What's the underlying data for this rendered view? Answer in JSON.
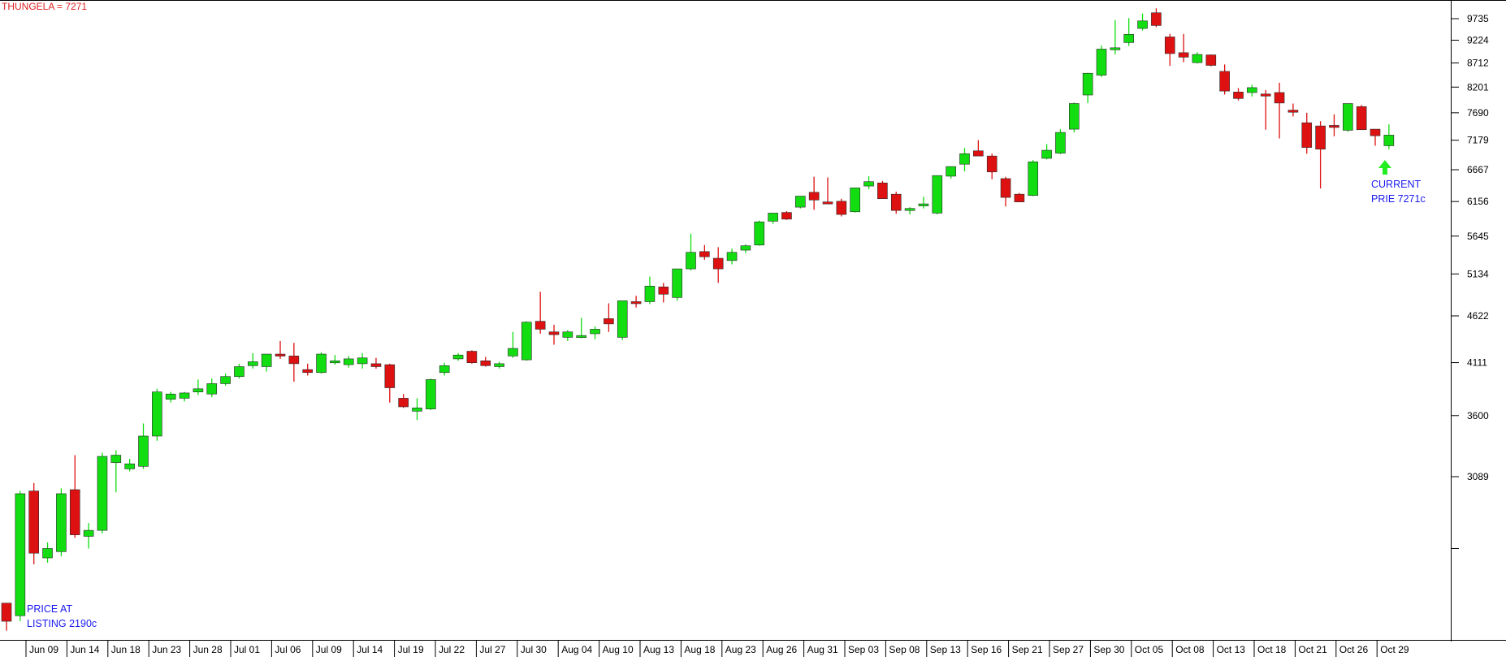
{
  "title": "THUNGELA = 7271",
  "annotations": {
    "listing": [
      "PRICE AT",
      "LISTING 2190c"
    ],
    "current": [
      "CURRENT",
      "PRIE 7271c"
    ]
  },
  "colors": {
    "up": "#11dd11",
    "down": "#dd1111",
    "title": "#dd2222",
    "annotation": "#1a1aee",
    "arrow": "#22ee22",
    "axis": "#000000"
  },
  "chart_data": {
    "type": "candlestick",
    "title": "THUNGELA = 7271",
    "y_scale": "log",
    "ylim": [
      2100,
      10100
    ],
    "y_ticks": [
      3089,
      3600,
      4111,
      4622,
      5134,
      5645,
      6156,
      6667,
      7179,
      7690,
      8201,
      8712,
      9224,
      9735
    ],
    "extra_unlabeled_tick": 2580,
    "x_tick_labels": [
      "Jun 09",
      "Jun 14",
      "Jun 18",
      "Jun 23",
      "Jun 28",
      "Jul 01",
      "Jul 06",
      "Jul 09",
      "Jul 14",
      "Jul 19",
      "Jul 22",
      "Jul 27",
      "Jul 30",
      "Aug 04",
      "Aug 10",
      "Aug 13",
      "Aug 18",
      "Aug 23",
      "Aug 26",
      "Aug 31",
      "Sep 03",
      "Sep 08",
      "Sep 13",
      "Sep 16",
      "Sep 21",
      "Sep 27",
      "Sep 30",
      "Oct 05",
      "Oct 08",
      "Oct 13",
      "Oct 18",
      "Oct 21",
      "Oct 26",
      "Oct 29"
    ],
    "candles": [
      [
        2250,
        2250,
        2100,
        2150
      ],
      [
        2180,
        2980,
        2150,
        2960
      ],
      [
        2980,
        3040,
        2480,
        2550
      ],
      [
        2520,
        2620,
        2490,
        2580
      ],
      [
        2560,
        3000,
        2530,
        2960
      ],
      [
        2990,
        3260,
        2650,
        2670
      ],
      [
        2660,
        2750,
        2580,
        2700
      ],
      [
        2700,
        3280,
        2680,
        3250
      ],
      [
        3200,
        3300,
        2970,
        3260
      ],
      [
        3150,
        3230,
        3130,
        3190
      ],
      [
        3170,
        3530,
        3150,
        3420
      ],
      [
        3420,
        3850,
        3380,
        3820
      ],
      [
        3750,
        3820,
        3720,
        3800
      ],
      [
        3760,
        3820,
        3730,
        3810
      ],
      [
        3820,
        3940,
        3790,
        3850
      ],
      [
        3800,
        3950,
        3770,
        3900
      ],
      [
        3900,
        4000,
        3880,
        3970
      ],
      [
        3970,
        4100,
        3950,
        4070
      ],
      [
        4080,
        4210,
        4050,
        4120
      ],
      [
        4070,
        4200,
        4020,
        4200
      ],
      [
        4200,
        4340,
        4150,
        4190
      ],
      [
        4180,
        4320,
        3920,
        4100
      ],
      [
        4040,
        4100,
        3980,
        4010
      ],
      [
        4010,
        4220,
        4000,
        4200
      ],
      [
        4120,
        4190,
        4090,
        4130
      ],
      [
        4090,
        4180,
        4060,
        4150
      ],
      [
        4100,
        4210,
        4050,
        4160
      ],
      [
        4100,
        4160,
        4050,
        4070
      ],
      [
        4090,
        4100,
        3720,
        3860
      ],
      [
        3760,
        3800,
        3670,
        3680
      ],
      [
        3640,
        3760,
        3560,
        3670
      ],
      [
        3660,
        3950,
        3650,
        3940
      ],
      [
        4010,
        4110,
        3980,
        4080
      ],
      [
        4150,
        4210,
        4130,
        4190
      ],
      [
        4230,
        4240,
        4100,
        4110
      ],
      [
        4130,
        4170,
        4070,
        4080
      ],
      [
        4070,
        4120,
        4050,
        4100
      ],
      [
        4180,
        4440,
        4160,
        4260
      ],
      [
        4140,
        4560,
        4130,
        4550
      ],
      [
        4560,
        4910,
        4420,
        4470
      ],
      [
        4440,
        4520,
        4300,
        4410
      ],
      [
        4380,
        4460,
        4340,
        4440
      ],
      [
        4390,
        4600,
        4370,
        4400
      ],
      [
        4420,
        4500,
        4360,
        4470
      ],
      [
        4590,
        4770,
        4440,
        4530
      ],
      [
        4380,
        4800,
        4350,
        4800
      ],
      [
        4790,
        4860,
        4720,
        4780
      ],
      [
        4790,
        5100,
        4760,
        4980
      ],
      [
        4970,
        5020,
        4780,
        4880
      ],
      [
        4840,
        5200,
        4800,
        5200
      ],
      [
        5200,
        5680,
        5180,
        5420
      ],
      [
        5430,
        5520,
        5320,
        5360
      ],
      [
        5340,
        5490,
        5020,
        5200
      ],
      [
        5310,
        5470,
        5260,
        5420
      ],
      [
        5450,
        5530,
        5410,
        5510
      ],
      [
        5520,
        5870,
        5510,
        5850
      ],
      [
        5860,
        5980,
        5820,
        5980
      ],
      [
        5990,
        6010,
        5880,
        5890
      ],
      [
        6070,
        6240,
        6050,
        6240
      ],
      [
        6300,
        6550,
        6030,
        6180
      ],
      [
        6150,
        6540,
        6120,
        6120
      ],
      [
        6160,
        6200,
        5930,
        5960
      ],
      [
        6000,
        6370,
        5990,
        6370
      ],
      [
        6400,
        6560,
        6350,
        6470
      ],
      [
        6450,
        6480,
        6200,
        6200
      ],
      [
        6270,
        6310,
        5970,
        6020
      ],
      [
        6030,
        6070,
        5960,
        6050
      ],
      [
        6090,
        6230,
        6050,
        6120
      ],
      [
        5980,
        6570,
        5960,
        6570
      ],
      [
        6560,
        6720,
        6520,
        6720
      ],
      [
        6760,
        7040,
        6640,
        6940
      ],
      [
        6990,
        7180,
        6950,
        6900
      ],
      [
        6900,
        6940,
        6510,
        6630
      ],
      [
        6520,
        6550,
        6080,
        6220
      ],
      [
        6270,
        6290,
        6150,
        6150
      ],
      [
        6250,
        6830,
        6240,
        6800
      ],
      [
        6860,
        7110,
        6840,
        7000
      ],
      [
        6950,
        7380,
        6930,
        7320
      ],
      [
        7380,
        7890,
        7320,
        7870
      ],
      [
        8040,
        8500,
        7880,
        8490
      ],
      [
        8450,
        9100,
        8410,
        9020
      ],
      [
        9040,
        9700,
        8900,
        9050
      ],
      [
        9170,
        9750,
        9090,
        9360
      ],
      [
        9500,
        9860,
        9450,
        9680
      ],
      [
        9880,
        9990,
        9530,
        9570
      ],
      [
        9300,
        9370,
        8650,
        8920
      ],
      [
        8940,
        9370,
        8730,
        8840
      ],
      [
        8720,
        8950,
        8700,
        8900
      ],
      [
        8890,
        8900,
        8640,
        8660
      ],
      [
        8530,
        8680,
        8050,
        8120
      ],
      [
        8100,
        8180,
        7930,
        7970
      ],
      [
        8090,
        8250,
        8010,
        8190
      ],
      [
        8060,
        8140,
        7370,
        8050
      ],
      [
        8090,
        8290,
        7210,
        7880
      ],
      [
        7740,
        7870,
        7620,
        7700
      ],
      [
        7500,
        7690,
        6940,
        7050
      ],
      [
        7440,
        7530,
        6360,
        7020
      ],
      [
        7450,
        7660,
        7250,
        7420
      ],
      [
        7360,
        7840,
        7330,
        7870
      ],
      [
        7810,
        7840,
        7370,
        7370
      ],
      [
        7380,
        7370,
        7080,
        7260
      ],
      [
        7080,
        7470,
        7020,
        7271
      ]
    ]
  }
}
